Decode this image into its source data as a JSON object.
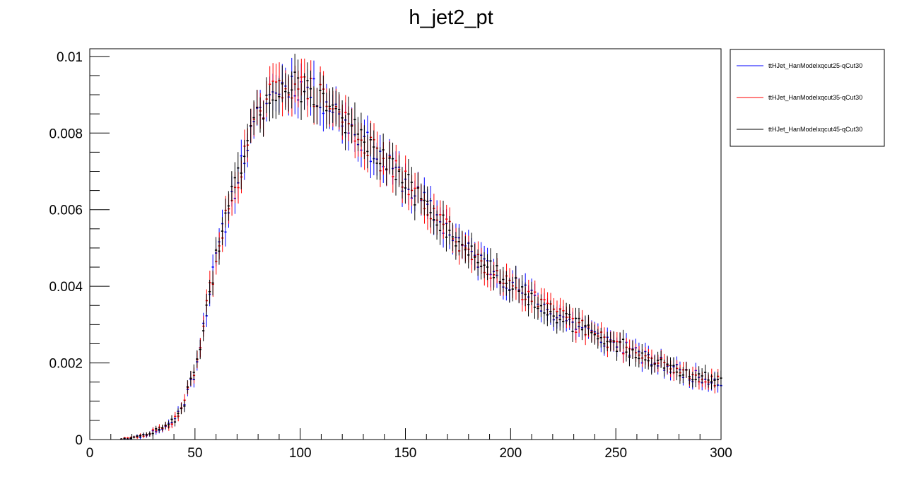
{
  "chart_data": {
    "type": "scatter",
    "title": "h_jet2_pt",
    "xlabel": "",
    "ylabel": "",
    "xlim": [
      0,
      300
    ],
    "ylim": [
      0,
      0.0102
    ],
    "x_ticks": [
      "0",
      "50",
      "100",
      "150",
      "200",
      "250",
      "300"
    ],
    "y_ticks": [
      "0",
      "0.002",
      "0.004",
      "0.006",
      "0.008",
      "0.01"
    ],
    "grid": false,
    "legend_position": "top-right, outside plot",
    "bin_width": 1.5,
    "series": [
      {
        "name": "ttHJet_HanModelxqcut25-qCut30",
        "color": "#0000ff",
        "offset": 0.0,
        "seed": 11
      },
      {
        "name": "ttHJet_HanModelxqcut35-qCut30",
        "color": "#ff0000",
        "offset": 0.06,
        "seed": 29
      },
      {
        "name": "ttHJet_HanModelxqcut45-qCut30",
        "color": "#000000",
        "offset": -0.03,
        "seed": 47
      }
    ],
    "shape": {
      "x": [
        15,
        20,
        25,
        30,
        35,
        40,
        45,
        50,
        55,
        60,
        65,
        70,
        75,
        80,
        85,
        90,
        95,
        100,
        105,
        110,
        115,
        120,
        125,
        130,
        135,
        140,
        145,
        150,
        155,
        160,
        165,
        170,
        175,
        180,
        185,
        190,
        195,
        200,
        205,
        210,
        215,
        220,
        225,
        230,
        235,
        240,
        245,
        250,
        255,
        260,
        265,
        270,
        275,
        280,
        285,
        290,
        295,
        300
      ],
      "y": [
        2e-05,
        4e-05,
        0.0001,
        0.0002,
        0.0003,
        0.0005,
        0.001,
        0.0018,
        0.0033,
        0.0047,
        0.0058,
        0.0068,
        0.0077,
        0.0084,
        0.0089,
        0.0092,
        0.0093,
        0.0092,
        0.0091,
        0.0089,
        0.0087,
        0.0084,
        0.0081,
        0.0078,
        0.0075,
        0.0072,
        0.007,
        0.0067,
        0.0064,
        0.0061,
        0.0058,
        0.0055,
        0.0052,
        0.0049,
        0.0047,
        0.0045,
        0.0043,
        0.0041,
        0.0039,
        0.0037,
        0.0035,
        0.0033,
        0.0032,
        0.003,
        0.0029,
        0.0027,
        0.0026,
        0.0025,
        0.0024,
        0.0022,
        0.0021,
        0.002,
        0.0019,
        0.0018,
        0.0017,
        0.0016,
        0.0016,
        0.0015
      ]
    }
  }
}
